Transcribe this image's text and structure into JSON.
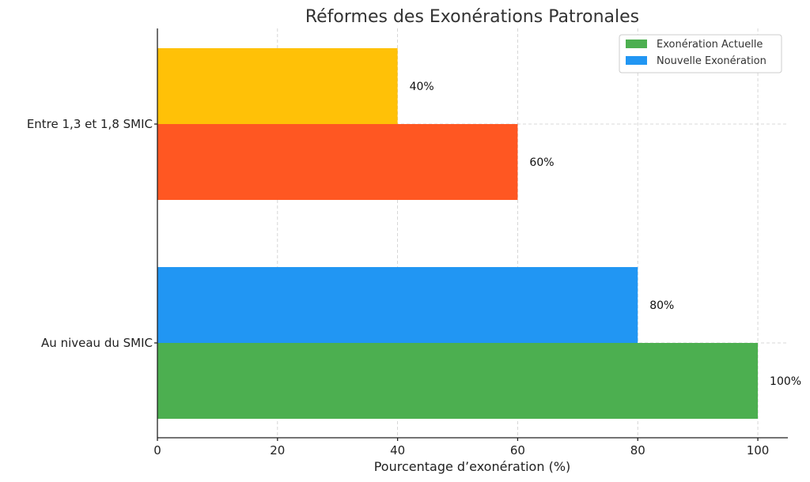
{
  "chart_data": {
    "type": "bar",
    "orientation": "horizontal",
    "title": "Réformes des Exonérations Patronales",
    "xlabel": "Pourcentage d’exonération (%)",
    "ylabel": "",
    "xlim": [
      0,
      105
    ],
    "xticks": [
      0,
      20,
      40,
      60,
      80,
      100
    ],
    "grid": true,
    "legend_position": "top-right",
    "categories": [
      "Au niveau du SMIC",
      "Entre 1,3 et 1,8 SMIC"
    ],
    "series": [
      {
        "name": "Exonération Actuelle",
        "values": [
          100,
          60
        ],
        "colors": [
          "#4caf50",
          "#ff5722"
        ]
      },
      {
        "name": "Nouvelle Exonération",
        "values": [
          80,
          40
        ],
        "colors": [
          "#2196f3",
          "#ffc107"
        ]
      }
    ],
    "legend_colors": [
      "#4caf50",
      "#2196f3"
    ],
    "data_labels": [
      [
        "100%",
        "60%"
      ],
      [
        "80%",
        "40%"
      ]
    ]
  }
}
